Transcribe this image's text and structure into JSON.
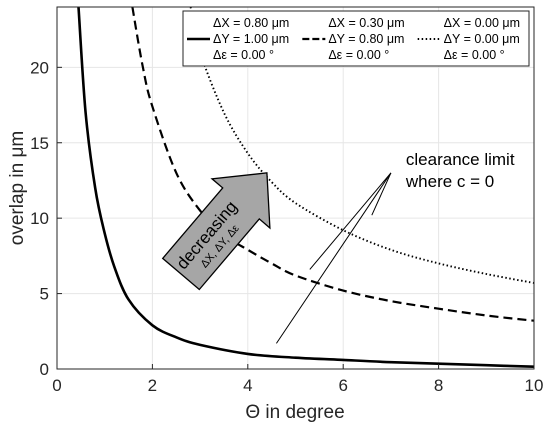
{
  "chart_data": {
    "type": "line",
    "xlabel": "Θ in degree",
    "ylabel": "overlap in μm",
    "xlim": [
      0,
      10
    ],
    "ylim": [
      0,
      24
    ],
    "xticks": [
      0,
      2,
      4,
      6,
      8,
      10
    ],
    "yticks": [
      0,
      5,
      10,
      15,
      20
    ],
    "grid": true,
    "legend_position": "top-right",
    "series": [
      {
        "legend_lines": [
          "ΔX = 0.80 μm",
          "ΔY = 1.00 μm",
          "Δε = 0.00 °"
        ],
        "line_style": "solid",
        "color": "#000000",
        "x": [
          0.45,
          0.6,
          0.8,
          1.0,
          1.2,
          1.5,
          2.0,
          2.5,
          3.0,
          4.0,
          5.0,
          6.0,
          7.0,
          8.0,
          9.0,
          10.0
        ],
        "y": [
          24.0,
          17.0,
          12.0,
          9.0,
          6.8,
          4.6,
          2.9,
          2.1,
          1.6,
          1.0,
          0.75,
          0.6,
          0.45,
          0.35,
          0.25,
          0.15
        ]
      },
      {
        "legend_lines": [
          "ΔX = 0.30 μm",
          "ΔY = 0.80 μm",
          "Δε = 0.00 °"
        ],
        "line_style": "dashed",
        "color": "#000000",
        "x": [
          1.58,
          1.8,
          2.0,
          2.5,
          3.0,
          3.5,
          4.0,
          4.5,
          5.0,
          6.0,
          7.0,
          8.0,
          9.0,
          10.0
        ],
        "y": [
          24.0,
          20.0,
          17.4,
          13.0,
          10.5,
          8.9,
          7.9,
          7.0,
          6.2,
          5.2,
          4.5,
          4.0,
          3.55,
          3.2
        ]
      },
      {
        "legend_lines": [
          "ΔX = 0.00 μm",
          "ΔY = 0.00 μm",
          "Δε = 0.00 °"
        ],
        "line_style": "dotted",
        "color": "#000000",
        "x": [
          2.8,
          3.0,
          3.5,
          4.0,
          4.5,
          5.0,
          6.0,
          7.0,
          8.0,
          9.0,
          10.0
        ],
        "y": [
          24.0,
          21.0,
          17.0,
          14.3,
          12.4,
          11.0,
          9.2,
          7.9,
          7.0,
          6.3,
          5.7
        ]
      }
    ],
    "annotations": {
      "clearance_limit": [
        "clearance limit",
        "where c = 0"
      ],
      "clearance_points": [
        [
          4.6,
          1.7
        ],
        [
          5.3,
          6.6
        ],
        [
          6.6,
          10.2
        ]
      ],
      "clearance_label_anchor": [
        7.0,
        13.0
      ],
      "decreasing_arrow": {
        "title": "decreasing",
        "subtitle": "ΔX, ΔY, Δε",
        "tail": [
          2.6,
          6.3
        ],
        "head": [
          4.4,
          13.0
        ],
        "fill": "#a6a6a6"
      }
    }
  }
}
